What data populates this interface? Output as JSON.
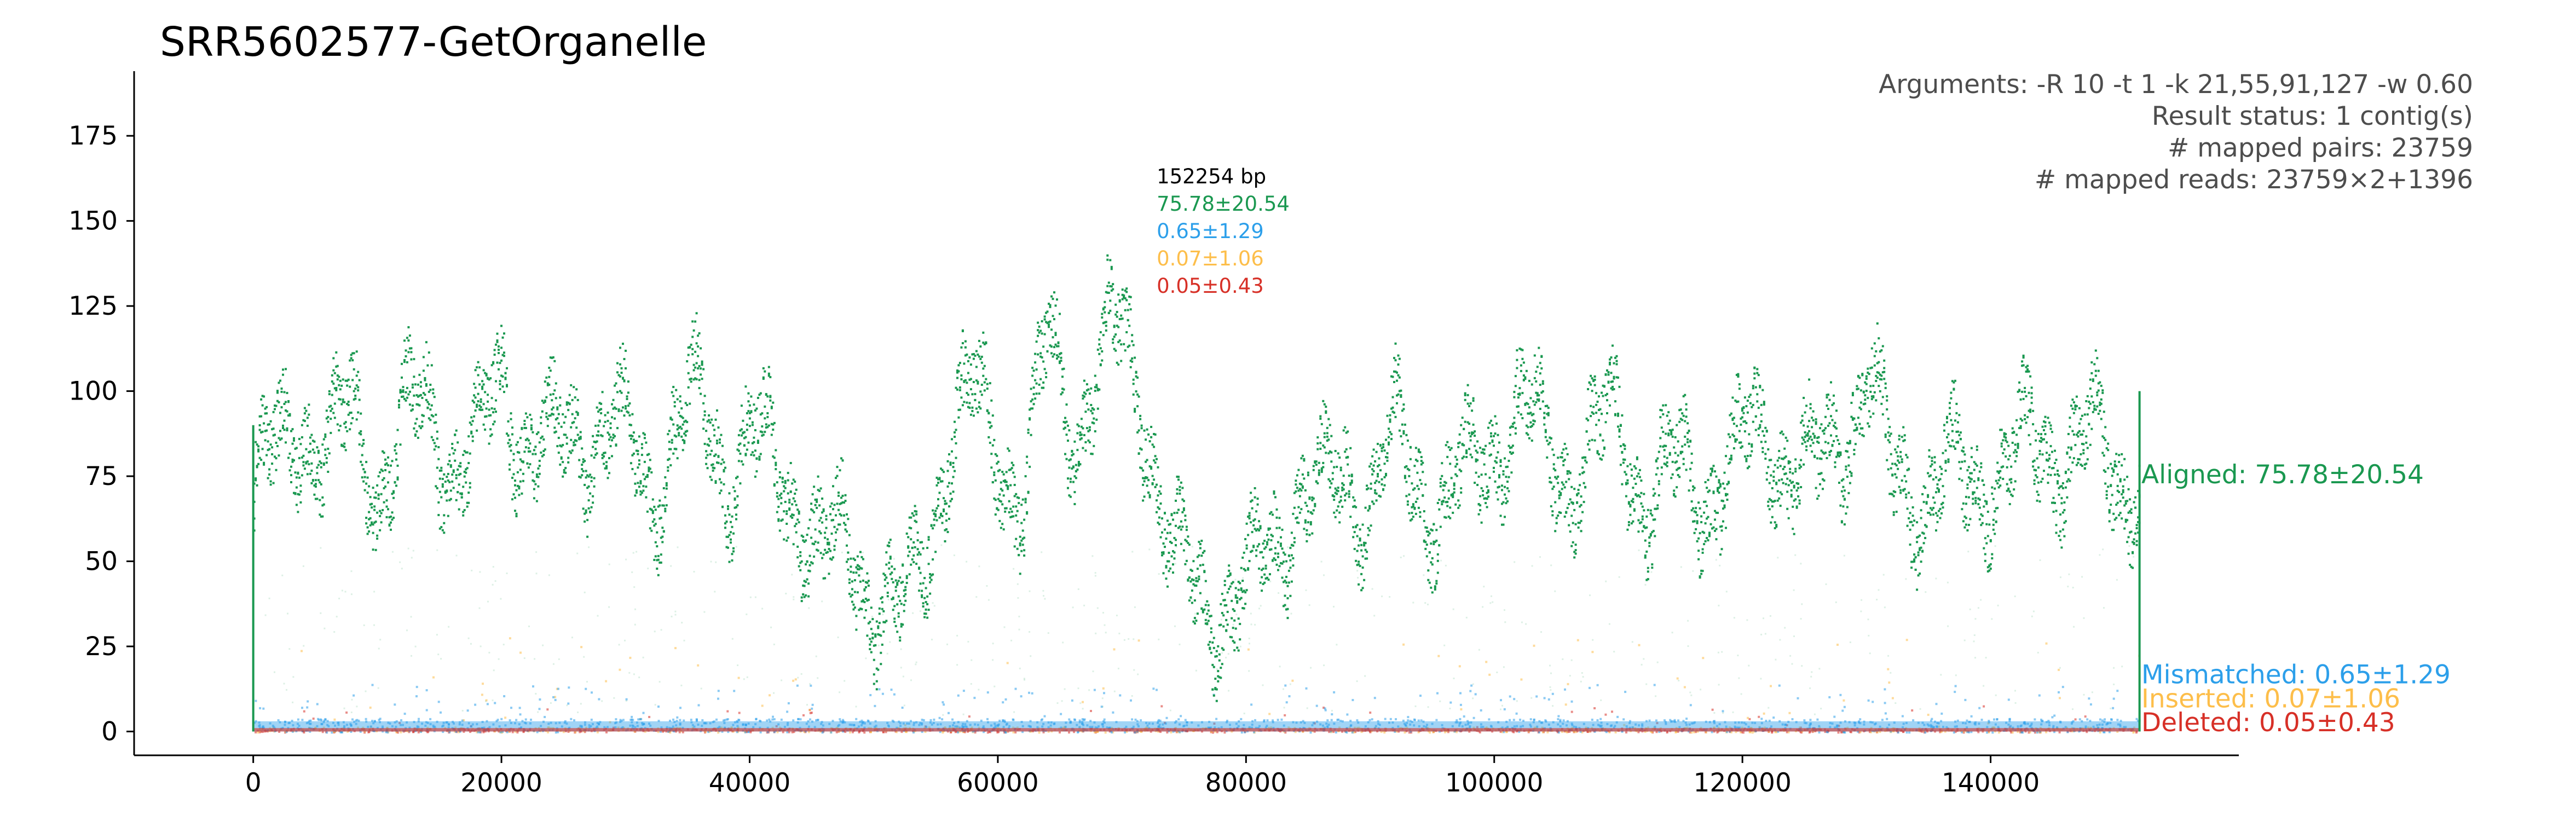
{
  "chart_data": {
    "type": "scatter",
    "title": "SRR5602577-GetOrganelle",
    "xlabel": "",
    "ylabel": "",
    "xlim": [
      -9600,
      160000
    ],
    "ylim": [
      -7,
      194
    ],
    "x_ticks": [
      0,
      20000,
      40000,
      60000,
      80000,
      100000,
      120000,
      140000
    ],
    "y_ticks": [
      0,
      25,
      50,
      75,
      100,
      125,
      150,
      175
    ],
    "x_tick_labels": [
      "0",
      "20000",
      "40000",
      "60000",
      "80000",
      "100000",
      "120000",
      "140000"
    ],
    "y_tick_labels": [
      "0",
      "25",
      "50",
      "75",
      "100",
      "125",
      "150",
      "175"
    ],
    "grid": false,
    "info_lines": [
      "Arguments: -R 10 -t 1 -k 21,55,91,127 -w 0.60",
      "Result status: 1 contig(s)",
      "# mapped pairs: 23759",
      "# mapped reads: 23759×2+1396"
    ],
    "contig": {
      "x": 72800,
      "length_label": "152254 bp",
      "stats": [
        {
          "label": "75.78±20.54",
          "color": "#1a9850"
        },
        {
          "label": "0.65±1.29",
          "color": "#2c9fea"
        },
        {
          "label": "0.07±1.06",
          "color": "#fdbe4a"
        },
        {
          "label": "0.05±0.43",
          "color": "#d73027"
        }
      ]
    },
    "series": [
      {
        "name": "Aligned: 75.78±20.54",
        "color": "#1a9850",
        "summary": {
          "mean": 75.78,
          "sd": 20.54
        },
        "x": [
          0,
          2000,
          4000,
          6000,
          8000,
          10000,
          12000,
          14000,
          16000,
          18000,
          20000,
          22000,
          24000,
          26000,
          28000,
          30000,
          32000,
          34000,
          36000,
          38000,
          40000,
          42000,
          44000,
          46000,
          48000,
          50000,
          52000,
          54000,
          56000,
          58000,
          60000,
          62000,
          64000,
          66000,
          68000,
          70000,
          72000,
          74000,
          76000,
          78000,
          80000,
          82000,
          84000,
          86000,
          88000,
          90000,
          92000,
          94000,
          96000,
          98000,
          100000,
          102000,
          104000,
          106000,
          108000,
          110000,
          112000,
          114000,
          116000,
          118000,
          120000,
          122000,
          124000,
          126000,
          128000,
          130000,
          132000,
          134000,
          136000,
          138000,
          140000,
          142000,
          144000,
          146000,
          148000,
          150000,
          152000
        ],
        "y": [
          70,
          80,
          95,
          80,
          92,
          75,
          88,
          95,
          82,
          78,
          108,
          85,
          80,
          92,
          88,
          82,
          75,
          88,
          95,
          80,
          85,
          76,
          70,
          48,
          55,
          42,
          30,
          55,
          88,
          95,
          85,
          70,
          112,
          92,
          108,
          115,
          95,
          50,
          38,
          42,
          38,
          55,
          72,
          65,
          78,
          70,
          82,
          75,
          68,
          72,
          88,
          95,
          82,
          78,
          85,
          88,
          72,
          75,
          70,
          78,
          80,
          88,
          82,
          72,
          90,
          108,
          70,
          72,
          78,
          68,
          80,
          82,
          78,
          88,
          85,
          72,
          82
        ]
      },
      {
        "name": "Mismatched: 0.65±1.29",
        "color": "#2c9fea",
        "summary": {
          "mean": 0.65,
          "sd": 1.29
        }
      },
      {
        "name": "Inserted: 0.07±1.06",
        "color": "#fdbe4a",
        "summary": {
          "mean": 0.07,
          "sd": 1.06
        }
      },
      {
        "name": "Deleted: 0.05±0.43",
        "color": "#d73027",
        "summary": {
          "mean": 0.05,
          "sd": 0.43
        }
      }
    ]
  }
}
